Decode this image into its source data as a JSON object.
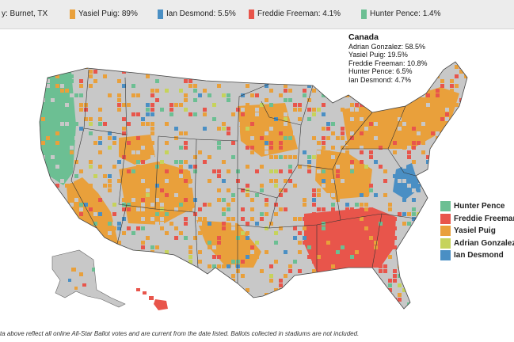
{
  "colors": {
    "pence": "#6cbf93",
    "freeman": "#e8554b",
    "puig": "#e9a03b",
    "gonzalez": "#c6d35b",
    "desmond": "#4a8fc4",
    "neutral": "#c8c8c8"
  },
  "top_bar": {
    "county": "y: Burnet, TX",
    "items": [
      {
        "label": "Yasiel Puig: 89%",
        "color": "#e9a03b"
      },
      {
        "label": "Ian Desmond: 5.5%",
        "color": "#4a8fc4"
      },
      {
        "label": "Freddie Freeman: 4.1%",
        "color": "#e8554b"
      },
      {
        "label": "Hunter Pence: 1.4%",
        "color": "#6cbf93"
      }
    ]
  },
  "canada": {
    "title": "Canada",
    "rows": [
      "Adrian Gonzalez: 58.5%",
      "Yasiel Puig: 19.5%",
      "Freddie Freeman: 10.8%",
      "Hunter Pence: 6.5%",
      "Ian Desmond: 4.7%"
    ]
  },
  "legend": [
    {
      "label": "Hunter Pence",
      "color": "#6cbf93"
    },
    {
      "label": "Freddie Freeman",
      "color": "#e8554b"
    },
    {
      "label": "Yasiel Puig",
      "color": "#e9a03b"
    },
    {
      "label": "Adrian Gonzalez",
      "color": "#c6d35b"
    },
    {
      "label": "Ian Desmond",
      "color": "#4a8fc4"
    }
  ],
  "footnote": "ta above reflect all online All-Star Ballot votes and are current from the date listed. Ballots collected in stadiums are not included."
}
